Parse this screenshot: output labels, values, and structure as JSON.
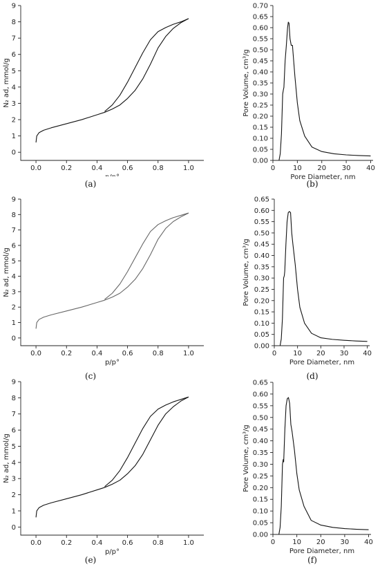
{
  "captions": [
    "(a)",
    "(b)",
    "(c)",
    "(d)",
    "(e)",
    "(f)"
  ],
  "chart_data": [
    {
      "panel": "a",
      "type": "line",
      "xlabel": "p/p°",
      "ylabel": "N₂ ad, mmol/g",
      "xlim": [
        -0.1,
        1.1
      ],
      "ylim": [
        -0.5,
        9
      ],
      "xticks": [
        0.0,
        0.2,
        0.4,
        0.6,
        0.8,
        1.0
      ],
      "yticks": [
        0,
        1,
        2,
        3,
        4,
        5,
        6,
        7,
        8,
        9
      ],
      "tick_decimals": 1,
      "line_color": "#111111",
      "series": [
        {
          "x": [
            0.0,
            0.005,
            0.02,
            0.05,
            0.1,
            0.2,
            0.3,
            0.4,
            0.45,
            0.5,
            0.55,
            0.6,
            0.65,
            0.7,
            0.75,
            0.8,
            0.85,
            0.9,
            0.95,
            1.0
          ],
          "y": [
            0.6,
            1.0,
            1.2,
            1.35,
            1.5,
            1.75,
            2.0,
            2.3,
            2.45,
            2.65,
            2.9,
            3.3,
            3.8,
            4.5,
            5.4,
            6.4,
            7.1,
            7.6,
            7.95,
            8.2
          ]
        },
        {
          "x": [
            0.45,
            0.5,
            0.55,
            0.6,
            0.65,
            0.7,
            0.75,
            0.8,
            0.85,
            0.9,
            0.95,
            1.0
          ],
          "y": [
            2.5,
            2.9,
            3.5,
            4.3,
            5.2,
            6.1,
            6.9,
            7.4,
            7.65,
            7.85,
            8.0,
            8.2
          ]
        }
      ]
    },
    {
      "panel": "b",
      "type": "line",
      "xlabel": "Pore Diameter, nm",
      "ylabel": "Pore Volume, cm³/g",
      "xlim": [
        0,
        41
      ],
      "ylim": [
        0,
        0.7
      ],
      "xticks": [
        0,
        10,
        20,
        30,
        40
      ],
      "yticks": [
        0.0,
        0.05,
        0.1,
        0.15,
        0.2,
        0.25,
        0.3,
        0.35,
        0.4,
        0.45,
        0.5,
        0.55,
        0.6,
        0.65,
        0.7
      ],
      "tick_decimals": 2,
      "line_color": "#111111",
      "series": [
        {
          "x": [
            2.5,
            3.0,
            3.5,
            4.0,
            4.3,
            4.5,
            5.0,
            5.5,
            6.0,
            6.3,
            6.6,
            7.0,
            7.5,
            8.0,
            8.5,
            9.0,
            10.0,
            11.0,
            13.0,
            16.0,
            20.0,
            25.0,
            30.0,
            35.0,
            40.0
          ],
          "y": [
            0.0,
            0.03,
            0.12,
            0.3,
            0.32,
            0.33,
            0.45,
            0.52,
            0.6,
            0.625,
            0.62,
            0.55,
            0.52,
            0.52,
            0.45,
            0.38,
            0.26,
            0.18,
            0.11,
            0.06,
            0.04,
            0.03,
            0.025,
            0.022,
            0.02
          ]
        }
      ]
    },
    {
      "panel": "c",
      "type": "line",
      "xlabel": "p/p°",
      "ylabel": "N₂ ad, mmol/g",
      "xlim": [
        -0.1,
        1.1
      ],
      "ylim": [
        -0.5,
        9
      ],
      "xticks": [
        0.0,
        0.2,
        0.4,
        0.6,
        0.8,
        1.0
      ],
      "yticks": [
        0,
        1,
        2,
        3,
        4,
        5,
        6,
        7,
        8,
        9
      ],
      "tick_decimals": 1,
      "line_color": "#666666",
      "series": [
        {
          "x": [
            0.0,
            0.005,
            0.02,
            0.05,
            0.1,
            0.2,
            0.3,
            0.4,
            0.45,
            0.5,
            0.55,
            0.6,
            0.65,
            0.7,
            0.75,
            0.8,
            0.85,
            0.9,
            0.95,
            1.0
          ],
          "y": [
            0.6,
            1.0,
            1.2,
            1.35,
            1.5,
            1.75,
            2.0,
            2.3,
            2.45,
            2.65,
            2.9,
            3.3,
            3.8,
            4.5,
            5.4,
            6.4,
            7.1,
            7.55,
            7.85,
            8.1
          ]
        },
        {
          "x": [
            0.45,
            0.5,
            0.55,
            0.6,
            0.65,
            0.7,
            0.75,
            0.8,
            0.85,
            0.9,
            0.95,
            1.0
          ],
          "y": [
            2.5,
            2.9,
            3.5,
            4.3,
            5.2,
            6.1,
            6.9,
            7.35,
            7.6,
            7.8,
            7.95,
            8.1
          ]
        }
      ]
    },
    {
      "panel": "d",
      "type": "line",
      "xlabel": "Pore Diameter, nm",
      "ylabel": "Pore Volume, cm³/g",
      "xlim": [
        0,
        41
      ],
      "ylim": [
        0,
        0.65
      ],
      "xticks": [
        0,
        10,
        20,
        30,
        40
      ],
      "yticks": [
        0.0,
        0.05,
        0.1,
        0.15,
        0.2,
        0.25,
        0.3,
        0.35,
        0.4,
        0.45,
        0.5,
        0.55,
        0.6,
        0.65
      ],
      "tick_decimals": 2,
      "line_color": "#111111",
      "series": [
        {
          "x": [
            2.5,
            3.0,
            3.5,
            4.0,
            4.3,
            4.5,
            5.0,
            5.5,
            6.0,
            6.5,
            7.0,
            7.5,
            8.0,
            9.0,
            10.0,
            11.0,
            13.0,
            16.0,
            20.0,
            25.0,
            30.0,
            35.0,
            40.0
          ],
          "y": [
            0.0,
            0.03,
            0.12,
            0.3,
            0.31,
            0.33,
            0.45,
            0.55,
            0.59,
            0.595,
            0.59,
            0.5,
            0.45,
            0.36,
            0.25,
            0.17,
            0.1,
            0.055,
            0.035,
            0.028,
            0.024,
            0.021,
            0.019
          ]
        }
      ]
    },
    {
      "panel": "e",
      "type": "line",
      "xlabel": "p/p°",
      "ylabel": "N₂ ad, mmol/g",
      "xlim": [
        -0.1,
        1.1
      ],
      "ylim": [
        -0.5,
        9
      ],
      "xticks": [
        0.0,
        0.2,
        0.4,
        0.6,
        0.8,
        1.0
      ],
      "yticks": [
        0,
        1,
        2,
        3,
        4,
        5,
        6,
        7,
        8,
        9
      ],
      "tick_decimals": 1,
      "line_color": "#111111",
      "series": [
        {
          "x": [
            0.0,
            0.005,
            0.02,
            0.05,
            0.1,
            0.2,
            0.3,
            0.4,
            0.45,
            0.5,
            0.55,
            0.6,
            0.65,
            0.7,
            0.75,
            0.8,
            0.85,
            0.9,
            0.95,
            1.0
          ],
          "y": [
            0.6,
            1.0,
            1.2,
            1.35,
            1.5,
            1.75,
            2.0,
            2.3,
            2.45,
            2.65,
            2.9,
            3.3,
            3.8,
            4.5,
            5.4,
            6.3,
            7.0,
            7.45,
            7.8,
            8.05
          ]
        },
        {
          "x": [
            0.45,
            0.5,
            0.55,
            0.6,
            0.65,
            0.7,
            0.75,
            0.8,
            0.85,
            0.9,
            0.95,
            1.0
          ],
          "y": [
            2.5,
            2.9,
            3.5,
            4.3,
            5.2,
            6.1,
            6.85,
            7.3,
            7.55,
            7.75,
            7.9,
            8.05
          ]
        }
      ]
    },
    {
      "panel": "f",
      "type": "line",
      "xlabel": "Pore Diameter, nm",
      "ylabel": "Pore Volume, cm³/g",
      "xlim": [
        0,
        41
      ],
      "ylim": [
        0,
        0.65
      ],
      "xticks": [
        0,
        10,
        20,
        30,
        40
      ],
      "yticks": [
        0.0,
        0.05,
        0.1,
        0.15,
        0.2,
        0.25,
        0.3,
        0.35,
        0.4,
        0.45,
        0.5,
        0.55,
        0.6,
        0.65
      ],
      "tick_decimals": 2,
      "line_color": "#111111",
      "series": [
        {
          "x": [
            2.5,
            3.0,
            3.5,
            4.0,
            4.3,
            4.5,
            5.0,
            5.5,
            6.0,
            6.5,
            7.0,
            7.5,
            8.0,
            9.0,
            10.0,
            11.0,
            13.0,
            16.0,
            20.0,
            25.0,
            30.0,
            35.0,
            40.0
          ],
          "y": [
            0.0,
            0.03,
            0.12,
            0.3,
            0.32,
            0.31,
            0.45,
            0.55,
            0.58,
            0.585,
            0.56,
            0.47,
            0.44,
            0.36,
            0.26,
            0.19,
            0.12,
            0.06,
            0.04,
            0.03,
            0.025,
            0.022,
            0.02
          ]
        }
      ]
    }
  ]
}
